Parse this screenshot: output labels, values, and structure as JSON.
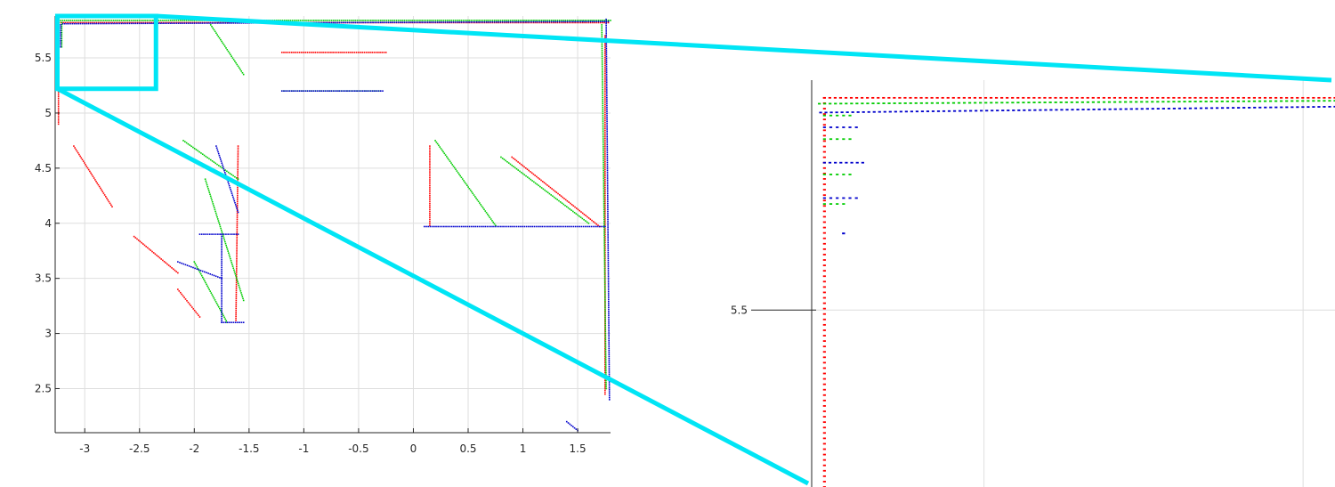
{
  "chart_data": [
    {
      "type": "scatter",
      "name": "main-plot",
      "title": "",
      "xlabel": "",
      "ylabel": "",
      "xlim": [
        -3.27,
        1.8
      ],
      "ylim": [
        2.1,
        5.88
      ],
      "x_ticks": [
        -3,
        -2.5,
        -2,
        -1.5,
        -1,
        -0.5,
        0,
        0.5,
        1,
        1.5
      ],
      "x_tick_labels": [
        "-3",
        "-2.5",
        "-2",
        "-1.5",
        "-1",
        "-0.5",
        "0",
        "0.5",
        "1",
        "1.5"
      ],
      "y_ticks": [
        2.5,
        3,
        3.5,
        4,
        4.5,
        5,
        5.5
      ],
      "y_tick_labels": [
        "2.5",
        "3",
        "3.5",
        "4",
        "4.5",
        "5",
        "5.5"
      ],
      "grid": true,
      "legend": "none",
      "series_colors": [
        "#ff0000",
        "#00cc00",
        "#0000cc"
      ],
      "series": [
        {
          "color": "#ff0000",
          "segments": [
            [
              [
                -3.25,
                5.82
              ],
              [
                1.78,
                5.82
              ]
            ],
            [
              [
                -3.24,
                5.8
              ],
              [
                -3.24,
                4.9
              ]
            ],
            [
              [
                -3.1,
                4.7
              ],
              [
                -2.75,
                4.15
              ]
            ],
            [
              [
                -2.55,
                3.88
              ],
              [
                -2.15,
                3.55
              ]
            ],
            [
              [
                -2.15,
                3.4
              ],
              [
                -1.95,
                3.15
              ]
            ],
            [
              [
                -1.2,
                5.55
              ],
              [
                -0.25,
                5.55
              ]
            ],
            [
              [
                -1.6,
                4.7
              ],
              [
                -1.62,
                3.12
              ]
            ],
            [
              [
                0.15,
                4.7
              ],
              [
                0.15,
                3.98
              ]
            ],
            [
              [
                0.9,
                4.6
              ],
              [
                1.7,
                3.97
              ]
            ],
            [
              [
                1.75,
                5.7
              ],
              [
                1.75,
                2.45
              ]
            ]
          ]
        },
        {
          "color": "#00cc00",
          "segments": [
            [
              [
                -3.22,
                5.84
              ],
              [
                1.8,
                5.84
              ]
            ],
            [
              [
                -3.21,
                5.82
              ],
              [
                -3.21,
                5.6
              ]
            ],
            [
              [
                -1.85,
                5.8
              ],
              [
                -1.55,
                5.35
              ]
            ],
            [
              [
                -2.1,
                4.75
              ],
              [
                -1.6,
                4.4
              ]
            ],
            [
              [
                -1.9,
                4.4
              ],
              [
                -1.55,
                3.3
              ]
            ],
            [
              [
                -2.0,
                3.65
              ],
              [
                -1.7,
                3.1
              ]
            ],
            [
              [
                -1.2,
                5.2
              ],
              [
                -0.3,
                5.2
              ]
            ],
            [
              [
                0.2,
                4.75
              ],
              [
                0.75,
                3.98
              ]
            ],
            [
              [
                0.8,
                4.6
              ],
              [
                1.6,
                4.0
              ]
            ],
            [
              [
                1.72,
                5.8
              ],
              [
                1.76,
                2.5
              ]
            ]
          ]
        },
        {
          "color": "#0000cc",
          "segments": [
            [
              [
                -3.2,
                5.81
              ],
              [
                1.78,
                5.83
              ]
            ],
            [
              [
                -3.22,
                5.8
              ],
              [
                -3.22,
                5.6
              ]
            ],
            [
              [
                -1.8,
                4.7
              ],
              [
                -1.6,
                4.1
              ]
            ],
            [
              [
                -1.95,
                3.9
              ],
              [
                -1.6,
                3.9
              ]
            ],
            [
              [
                -1.75,
                3.9
              ],
              [
                -1.75,
                3.1
              ]
            ],
            [
              [
                -1.75,
                3.1
              ],
              [
                -1.55,
                3.1
              ]
            ],
            [
              [
                -2.15,
                3.65
              ],
              [
                -1.75,
                3.5
              ]
            ],
            [
              [
                -1.2,
                5.2
              ],
              [
                -0.28,
                5.2
              ]
            ],
            [
              [
                0.1,
                3.97
              ],
              [
                1.75,
                3.97
              ]
            ],
            [
              [
                1.76,
                5.85
              ],
              [
                1.79,
                2.4
              ]
            ],
            [
              [
                1.4,
                2.2
              ],
              [
                1.5,
                2.12
              ]
            ]
          ]
        }
      ]
    },
    {
      "type": "scatter",
      "name": "zoom-inset",
      "title": "",
      "xlabel": "",
      "ylabel": "",
      "xlim": [
        -3.27,
        -2.45
      ],
      "ylim": [
        5.2,
        5.89
      ],
      "x_ticks": [
        -3.0,
        -2.5
      ],
      "y_ticks": [
        5.5
      ],
      "y_tick_labels": [
        "5.5"
      ],
      "grid": true,
      "legend": "none",
      "series": [
        {
          "color": "#ff0000",
          "segments": [
            [
              [
                -3.25,
                5.86
              ],
              [
                -2.45,
                5.86
              ]
            ],
            [
              [
                -3.25,
                5.86
              ],
              [
                -3.25,
                5.2
              ]
            ]
          ]
        },
        {
          "color": "#00cc00",
          "segments": [
            [
              [
                -3.258,
                5.85
              ],
              [
                -2.45,
                5.855
              ]
            ],
            [
              [
                -3.25,
                5.83
              ],
              [
                -3.21,
                5.83
              ]
            ],
            [
              [
                -3.25,
                5.79
              ],
              [
                -3.21,
                5.79
              ]
            ],
            [
              [
                -3.25,
                5.73
              ],
              [
                -3.21,
                5.73
              ]
            ],
            [
              [
                -3.25,
                5.68
              ],
              [
                -3.22,
                5.68
              ]
            ]
          ]
        },
        {
          "color": "#0000cc",
          "segments": [
            [
              [
                -3.256,
                5.835
              ],
              [
                -2.45,
                5.845
              ]
            ],
            [
              [
                -3.25,
                5.81
              ],
              [
                -3.2,
                5.81
              ]
            ],
            [
              [
                -3.25,
                5.75
              ],
              [
                -3.19,
                5.75
              ]
            ],
            [
              [
                -3.25,
                5.69
              ],
              [
                -3.2,
                5.69
              ]
            ],
            [
              [
                -3.22,
                5.63
              ],
              [
                -3.22,
                5.63
              ]
            ]
          ]
        }
      ]
    }
  ],
  "zoom_box": {
    "x": [
      -3.25,
      -2.35
    ],
    "y": [
      5.22,
      5.88
    ],
    "color": "#00e5f5"
  }
}
